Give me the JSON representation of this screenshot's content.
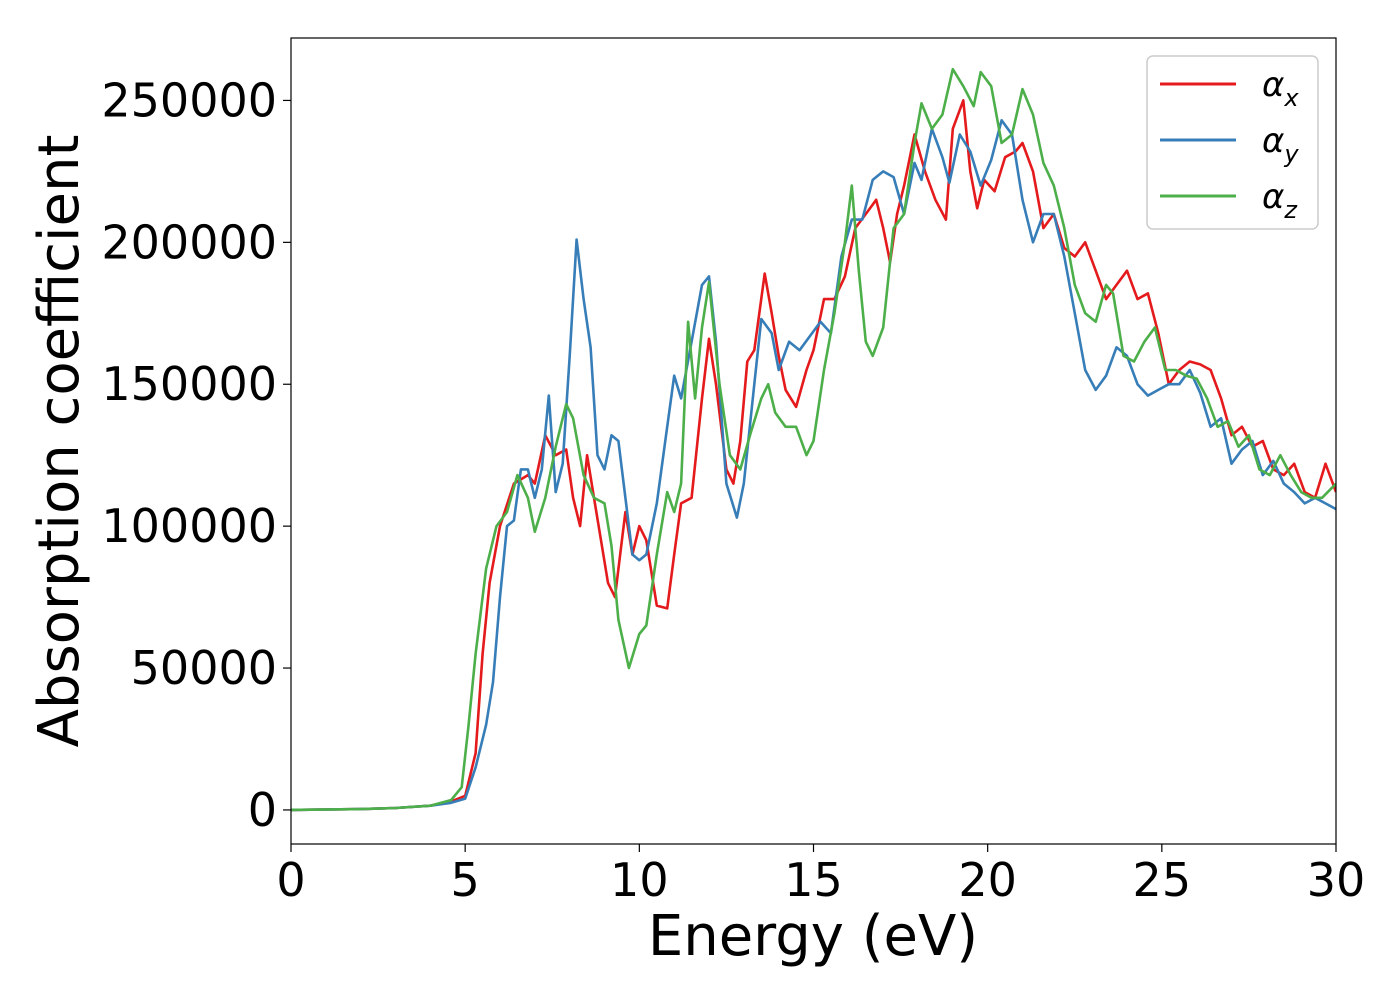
{
  "chart_data": {
    "type": "line",
    "title": "",
    "xlabel": "Energy (eV)",
    "ylabel": "Absorption coefficient",
    "xlim": [
      0,
      30
    ],
    "ylim": [
      -12000,
      272000
    ],
    "xticks": [
      0,
      5,
      10,
      15,
      20,
      25,
      30
    ],
    "yticks": [
      0,
      50000,
      100000,
      150000,
      200000,
      250000
    ],
    "grid": false,
    "legend_position": "top-right",
    "series": [
      {
        "name": "α",
        "subscript": "x",
        "color": "#e41a1c",
        "points": [
          [
            0,
            0
          ],
          [
            2,
            300
          ],
          [
            3,
            700
          ],
          [
            4,
            1500
          ],
          [
            4.6,
            3000
          ],
          [
            5.0,
            5000
          ],
          [
            5.3,
            20000
          ],
          [
            5.5,
            55000
          ],
          [
            5.7,
            80000
          ],
          [
            6.0,
            100000
          ],
          [
            6.4,
            115000
          ],
          [
            6.8,
            118000
          ],
          [
            7.0,
            115000
          ],
          [
            7.3,
            132000
          ],
          [
            7.6,
            125000
          ],
          [
            7.9,
            127000
          ],
          [
            8.1,
            110000
          ],
          [
            8.3,
            100000
          ],
          [
            8.5,
            125000
          ],
          [
            8.7,
            110000
          ],
          [
            8.9,
            95000
          ],
          [
            9.1,
            80000
          ],
          [
            9.3,
            75000
          ],
          [
            9.5,
            95000
          ],
          [
            9.6,
            105000
          ],
          [
            9.8,
            90000
          ],
          [
            10.0,
            100000
          ],
          [
            10.2,
            95000
          ],
          [
            10.5,
            72000
          ],
          [
            10.8,
            71000
          ],
          [
            11.0,
            90000
          ],
          [
            11.2,
            108000
          ],
          [
            11.5,
            110000
          ],
          [
            11.8,
            145000
          ],
          [
            12.0,
            166000
          ],
          [
            12.2,
            150000
          ],
          [
            12.5,
            120000
          ],
          [
            12.7,
            115000
          ],
          [
            12.9,
            130000
          ],
          [
            13.1,
            158000
          ],
          [
            13.3,
            162000
          ],
          [
            13.6,
            189000
          ],
          [
            13.8,
            175000
          ],
          [
            14.0,
            160000
          ],
          [
            14.2,
            148000
          ],
          [
            14.5,
            142000
          ],
          [
            14.8,
            155000
          ],
          [
            15.0,
            162000
          ],
          [
            15.3,
            180000
          ],
          [
            15.6,
            180000
          ],
          [
            15.9,
            188000
          ],
          [
            16.2,
            205000
          ],
          [
            16.5,
            210000
          ],
          [
            16.8,
            215000
          ],
          [
            17.0,
            205000
          ],
          [
            17.2,
            193000
          ],
          [
            17.4,
            210000
          ],
          [
            17.6,
            220000
          ],
          [
            17.9,
            238000
          ],
          [
            18.2,
            225000
          ],
          [
            18.5,
            215000
          ],
          [
            18.8,
            208000
          ],
          [
            19.0,
            240000
          ],
          [
            19.3,
            250000
          ],
          [
            19.5,
            225000
          ],
          [
            19.7,
            212000
          ],
          [
            19.9,
            222000
          ],
          [
            20.2,
            218000
          ],
          [
            20.5,
            230000
          ],
          [
            20.8,
            232000
          ],
          [
            21.0,
            235000
          ],
          [
            21.3,
            225000
          ],
          [
            21.6,
            205000
          ],
          [
            21.9,
            210000
          ],
          [
            22.2,
            198000
          ],
          [
            22.5,
            195000
          ],
          [
            22.8,
            200000
          ],
          [
            23.1,
            190000
          ],
          [
            23.4,
            180000
          ],
          [
            23.7,
            185000
          ],
          [
            24.0,
            190000
          ],
          [
            24.3,
            180000
          ],
          [
            24.6,
            182000
          ],
          [
            24.9,
            168000
          ],
          [
            25.2,
            150000
          ],
          [
            25.5,
            155000
          ],
          [
            25.8,
            158000
          ],
          [
            26.1,
            157000
          ],
          [
            26.4,
            155000
          ],
          [
            26.7,
            145000
          ],
          [
            27.0,
            132000
          ],
          [
            27.3,
            135000
          ],
          [
            27.6,
            128000
          ],
          [
            27.9,
            130000
          ],
          [
            28.2,
            120000
          ],
          [
            28.5,
            118000
          ],
          [
            28.8,
            122000
          ],
          [
            29.1,
            112000
          ],
          [
            29.4,
            110000
          ],
          [
            29.7,
            122000
          ],
          [
            30.0,
            112000
          ]
        ]
      },
      {
        "name": "α",
        "subscript": "y",
        "color": "#377eb8",
        "points": [
          [
            0,
            0
          ],
          [
            2,
            300
          ],
          [
            3,
            700
          ],
          [
            4,
            1500
          ],
          [
            4.6,
            2500
          ],
          [
            5.0,
            4000
          ],
          [
            5.3,
            15000
          ],
          [
            5.6,
            30000
          ],
          [
            5.8,
            45000
          ],
          [
            6.0,
            75000
          ],
          [
            6.2,
            100000
          ],
          [
            6.4,
            102000
          ],
          [
            6.6,
            120000
          ],
          [
            6.8,
            120000
          ],
          [
            7.0,
            110000
          ],
          [
            7.2,
            120000
          ],
          [
            7.4,
            146000
          ],
          [
            7.6,
            112000
          ],
          [
            7.8,
            122000
          ],
          [
            8.0,
            160000
          ],
          [
            8.2,
            201000
          ],
          [
            8.4,
            180000
          ],
          [
            8.6,
            163000
          ],
          [
            8.8,
            125000
          ],
          [
            9.0,
            120000
          ],
          [
            9.2,
            132000
          ],
          [
            9.4,
            130000
          ],
          [
            9.6,
            110000
          ],
          [
            9.8,
            90000
          ],
          [
            10.0,
            88000
          ],
          [
            10.2,
            90000
          ],
          [
            10.5,
            108000
          ],
          [
            10.8,
            135000
          ],
          [
            11.0,
            153000
          ],
          [
            11.2,
            145000
          ],
          [
            11.5,
            165000
          ],
          [
            11.8,
            185000
          ],
          [
            12.0,
            188000
          ],
          [
            12.2,
            165000
          ],
          [
            12.5,
            115000
          ],
          [
            12.8,
            103000
          ],
          [
            13.0,
            115000
          ],
          [
            13.3,
            150000
          ],
          [
            13.5,
            173000
          ],
          [
            13.8,
            168000
          ],
          [
            14.0,
            155000
          ],
          [
            14.3,
            165000
          ],
          [
            14.6,
            162000
          ],
          [
            14.9,
            167000
          ],
          [
            15.2,
            172000
          ],
          [
            15.5,
            168000
          ],
          [
            15.8,
            195000
          ],
          [
            16.1,
            208000
          ],
          [
            16.4,
            208000
          ],
          [
            16.7,
            222000
          ],
          [
            17.0,
            225000
          ],
          [
            17.3,
            223000
          ],
          [
            17.6,
            210000
          ],
          [
            17.9,
            228000
          ],
          [
            18.1,
            222000
          ],
          [
            18.4,
            240000
          ],
          [
            18.7,
            230000
          ],
          [
            18.9,
            221000
          ],
          [
            19.2,
            238000
          ],
          [
            19.5,
            232000
          ],
          [
            19.8,
            220000
          ],
          [
            20.1,
            229000
          ],
          [
            20.4,
            243000
          ],
          [
            20.7,
            238000
          ],
          [
            21.0,
            215000
          ],
          [
            21.3,
            200000
          ],
          [
            21.6,
            210000
          ],
          [
            21.9,
            210000
          ],
          [
            22.2,
            195000
          ],
          [
            22.5,
            175000
          ],
          [
            22.8,
            155000
          ],
          [
            23.1,
            148000
          ],
          [
            23.4,
            153000
          ],
          [
            23.7,
            163000
          ],
          [
            24.0,
            160000
          ],
          [
            24.3,
            150000
          ],
          [
            24.6,
            146000
          ],
          [
            24.9,
            148000
          ],
          [
            25.2,
            150000
          ],
          [
            25.5,
            150000
          ],
          [
            25.8,
            155000
          ],
          [
            26.1,
            147000
          ],
          [
            26.4,
            135000
          ],
          [
            26.7,
            138000
          ],
          [
            27.0,
            122000
          ],
          [
            27.3,
            127000
          ],
          [
            27.6,
            130000
          ],
          [
            27.9,
            118000
          ],
          [
            28.2,
            123000
          ],
          [
            28.5,
            115000
          ],
          [
            28.8,
            112000
          ],
          [
            29.1,
            108000
          ],
          [
            29.4,
            110000
          ],
          [
            29.7,
            108000
          ],
          [
            30.0,
            106000
          ]
        ]
      },
      {
        "name": "α",
        "subscript": "z",
        "color": "#4daf4a",
        "points": [
          [
            0,
            0
          ],
          [
            2,
            300
          ],
          [
            3,
            700
          ],
          [
            4,
            1500
          ],
          [
            4.6,
            3500
          ],
          [
            4.9,
            8000
          ],
          [
            5.1,
            30000
          ],
          [
            5.3,
            55000
          ],
          [
            5.6,
            85000
          ],
          [
            5.9,
            100000
          ],
          [
            6.2,
            105000
          ],
          [
            6.5,
            118000
          ],
          [
            6.8,
            110000
          ],
          [
            7.0,
            98000
          ],
          [
            7.3,
            110000
          ],
          [
            7.6,
            128000
          ],
          [
            7.9,
            143000
          ],
          [
            8.1,
            138000
          ],
          [
            8.4,
            118000
          ],
          [
            8.7,
            110000
          ],
          [
            9.0,
            108000
          ],
          [
            9.2,
            93000
          ],
          [
            9.4,
            67000
          ],
          [
            9.7,
            50000
          ],
          [
            10.0,
            62000
          ],
          [
            10.2,
            65000
          ],
          [
            10.5,
            90000
          ],
          [
            10.8,
            112000
          ],
          [
            11.0,
            105000
          ],
          [
            11.2,
            115000
          ],
          [
            11.4,
            172000
          ],
          [
            11.6,
            145000
          ],
          [
            11.8,
            170000
          ],
          [
            12.0,
            186000
          ],
          [
            12.3,
            150000
          ],
          [
            12.6,
            125000
          ],
          [
            12.9,
            120000
          ],
          [
            13.2,
            133000
          ],
          [
            13.5,
            145000
          ],
          [
            13.7,
            150000
          ],
          [
            13.9,
            140000
          ],
          [
            14.2,
            135000
          ],
          [
            14.5,
            135000
          ],
          [
            14.8,
            125000
          ],
          [
            15.0,
            130000
          ],
          [
            15.3,
            155000
          ],
          [
            15.6,
            175000
          ],
          [
            15.9,
            200000
          ],
          [
            16.1,
            220000
          ],
          [
            16.3,
            190000
          ],
          [
            16.5,
            165000
          ],
          [
            16.7,
            160000
          ],
          [
            17.0,
            170000
          ],
          [
            17.3,
            205000
          ],
          [
            17.6,
            210000
          ],
          [
            17.9,
            235000
          ],
          [
            18.1,
            249000
          ],
          [
            18.4,
            240000
          ],
          [
            18.7,
            245000
          ],
          [
            19.0,
            261000
          ],
          [
            19.3,
            255000
          ],
          [
            19.6,
            248000
          ],
          [
            19.8,
            260000
          ],
          [
            20.1,
            255000
          ],
          [
            20.4,
            235000
          ],
          [
            20.7,
            238000
          ],
          [
            21.0,
            254000
          ],
          [
            21.3,
            245000
          ],
          [
            21.6,
            228000
          ],
          [
            21.9,
            220000
          ],
          [
            22.2,
            205000
          ],
          [
            22.5,
            185000
          ],
          [
            22.8,
            175000
          ],
          [
            23.1,
            172000
          ],
          [
            23.4,
            185000
          ],
          [
            23.6,
            182000
          ],
          [
            23.9,
            160000
          ],
          [
            24.2,
            158000
          ],
          [
            24.5,
            165000
          ],
          [
            24.8,
            170000
          ],
          [
            25.1,
            155000
          ],
          [
            25.4,
            155000
          ],
          [
            25.7,
            153000
          ],
          [
            26.0,
            152000
          ],
          [
            26.3,
            145000
          ],
          [
            26.6,
            135000
          ],
          [
            26.9,
            137000
          ],
          [
            27.2,
            128000
          ],
          [
            27.5,
            132000
          ],
          [
            27.8,
            120000
          ],
          [
            28.1,
            118000
          ],
          [
            28.4,
            125000
          ],
          [
            28.7,
            118000
          ],
          [
            29.0,
            112000
          ],
          [
            29.3,
            110000
          ],
          [
            29.6,
            110000
          ],
          [
            30.0,
            115000
          ]
        ]
      }
    ]
  }
}
